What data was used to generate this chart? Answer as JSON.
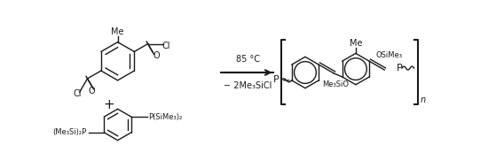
{
  "figsize": [
    5.68,
    1.64
  ],
  "dpi": 100,
  "bg_color": "#ffffff",
  "line_color": "#1a1a1a",
  "text_color": "#1a1a1a",
  "arrow_above": "85 °C",
  "arrow_below": "− 2Me₃SiCl",
  "reactant1_label1": "Me",
  "reactant1_label2": "O",
  "reactant1_label3": "O",
  "reactant1_label4": "Cl",
  "reactant1_label5": "Cl",
  "plus_sign": "+",
  "reactant2_label": "(Me₃Si)₂P—□—P(SiMe₃)₂",
  "product_bracket_n": "n",
  "product_label1": "Me",
  "product_label2": "OSiMe₃",
  "product_label3": "Me₃SiO",
  "font_size_main": 7,
  "font_size_sub": 6
}
